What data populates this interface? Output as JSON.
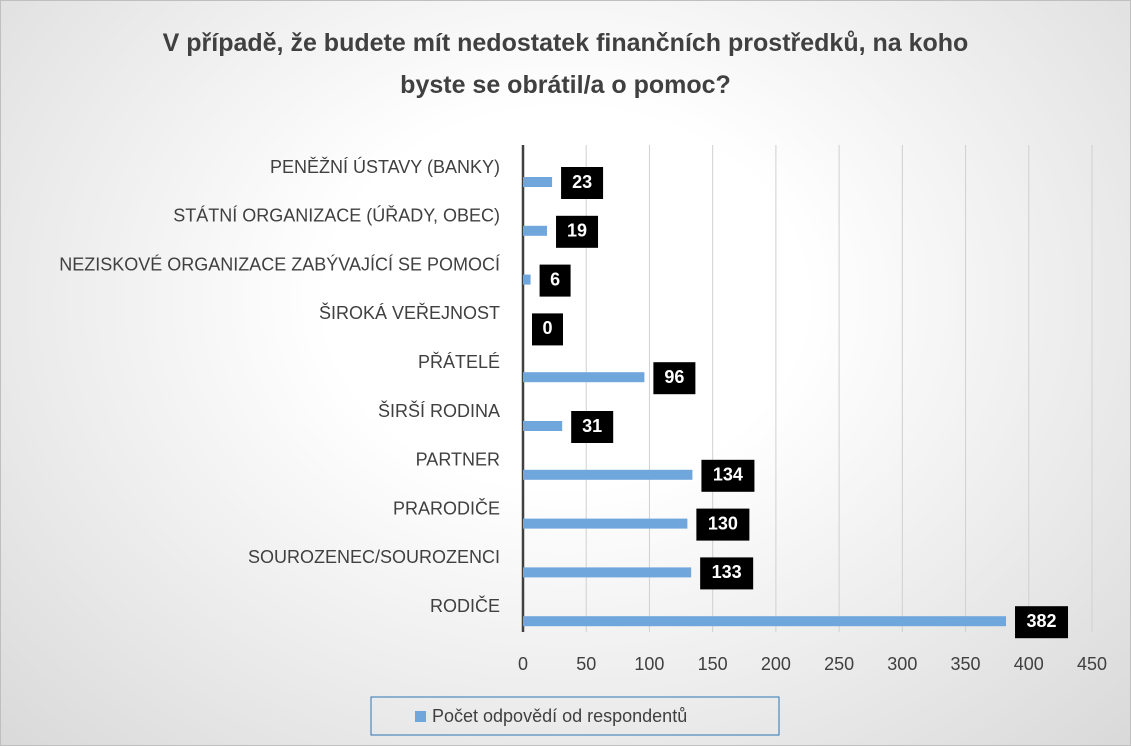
{
  "chart_data": {
    "type": "bar",
    "orientation": "horizontal",
    "title": "V případě, že budete mít nedostatek finančních prostředků, na koho byste se obrátil/a o pomoc?",
    "categories": [
      "PENĚŽNÍ ÚSTAVY (BANKY)",
      "STÁTNÍ ORGANIZACE (ÚŘADY, OBEC)",
      "NEZISKOVÉ ORGANIZACE ZABÝVAJÍCÍ SE POMOCÍ",
      "ŠIROKÁ VEŘEJNOST",
      "PŘÁTELÉ",
      "ŠIRŠÍ RODINA",
      "PARTNER",
      "PRARODIČE",
      "SOUROZENEC/SOUROZENCI",
      "RODIČE"
    ],
    "series": [
      {
        "name": "Počet odpovědí od respondentů",
        "color": "#6fa6dc",
        "values": [
          23,
          19,
          6,
          0,
          96,
          31,
          134,
          130,
          133,
          382
        ]
      }
    ],
    "xlim": [
      0,
      450
    ],
    "xticks": [
      0,
      50,
      100,
      150,
      200,
      250,
      300,
      350,
      400,
      450
    ],
    "grid": true,
    "legend": "bottom"
  }
}
